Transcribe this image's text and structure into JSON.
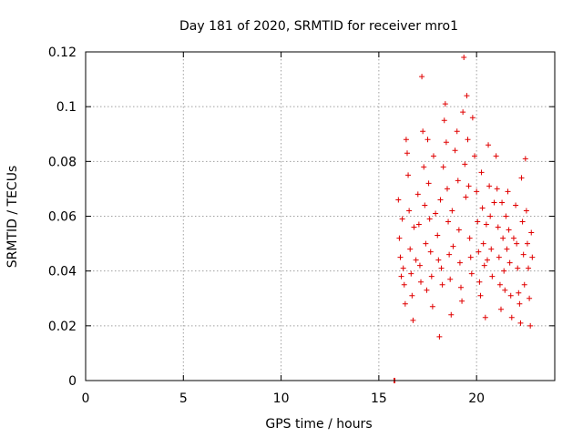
{
  "chart_data": {
    "type": "scatter",
    "title": "Day 181 of 2020, SRMTID for receiver mro1",
    "xlabel": "GPS time / hours",
    "ylabel": "SRMTID / TECUs",
    "xlim": [
      0,
      24
    ],
    "ylim": [
      0,
      0.12
    ],
    "x_ticks": [
      0,
      5,
      10,
      15,
      20
    ],
    "x_tick_labels": [
      "0",
      "5",
      "10",
      "15",
      "20"
    ],
    "y_ticks": [
      0,
      0.02,
      0.04,
      0.06,
      0.08,
      0.1,
      0.12
    ],
    "y_tick_labels": [
      "0",
      "0.02",
      "0.04",
      "0.06",
      "0.08",
      "0.1",
      "0.12"
    ],
    "grid": true,
    "marker": "+",
    "color": "#e00000",
    "series": [
      {
        "name": "SRMTID",
        "points": [
          [
            15.78,
            0.0
          ],
          [
            15.82,
            0.0
          ],
          [
            16.0,
            0.066
          ],
          [
            16.05,
            0.052
          ],
          [
            16.1,
            0.045
          ],
          [
            16.15,
            0.038
          ],
          [
            16.2,
            0.059
          ],
          [
            16.25,
            0.041
          ],
          [
            16.3,
            0.035
          ],
          [
            16.35,
            0.028
          ],
          [
            16.4,
            0.088
          ],
          [
            16.45,
            0.083
          ],
          [
            16.5,
            0.075
          ],
          [
            16.55,
            0.062
          ],
          [
            16.6,
            0.048
          ],
          [
            16.65,
            0.039
          ],
          [
            16.7,
            0.031
          ],
          [
            16.75,
            0.022
          ],
          [
            16.8,
            0.056
          ],
          [
            16.9,
            0.044
          ],
          [
            17.0,
            0.068
          ],
          [
            17.05,
            0.057
          ],
          [
            17.1,
            0.042
          ],
          [
            17.15,
            0.036
          ],
          [
            17.2,
            0.111
          ],
          [
            17.25,
            0.091
          ],
          [
            17.3,
            0.078
          ],
          [
            17.35,
            0.064
          ],
          [
            17.4,
            0.05
          ],
          [
            17.45,
            0.033
          ],
          [
            17.5,
            0.088
          ],
          [
            17.55,
            0.072
          ],
          [
            17.6,
            0.059
          ],
          [
            17.65,
            0.047
          ],
          [
            17.7,
            0.038
          ],
          [
            17.75,
            0.027
          ],
          [
            17.8,
            0.082
          ],
          [
            17.9,
            0.061
          ],
          [
            18.0,
            0.053
          ],
          [
            18.05,
            0.044
          ],
          [
            18.1,
            0.016
          ],
          [
            18.15,
            0.066
          ],
          [
            18.2,
            0.041
          ],
          [
            18.25,
            0.035
          ],
          [
            18.3,
            0.078
          ],
          [
            18.35,
            0.095
          ],
          [
            18.4,
            0.101
          ],
          [
            18.45,
            0.087
          ],
          [
            18.5,
            0.07
          ],
          [
            18.55,
            0.058
          ],
          [
            18.6,
            0.046
          ],
          [
            18.65,
            0.037
          ],
          [
            18.7,
            0.024
          ],
          [
            18.75,
            0.062
          ],
          [
            18.8,
            0.049
          ],
          [
            18.9,
            0.084
          ],
          [
            19.0,
            0.091
          ],
          [
            19.05,
            0.073
          ],
          [
            19.1,
            0.055
          ],
          [
            19.15,
            0.043
          ],
          [
            19.2,
            0.034
          ],
          [
            19.25,
            0.029
          ],
          [
            19.3,
            0.098
          ],
          [
            19.35,
            0.118
          ],
          [
            19.4,
            0.079
          ],
          [
            19.45,
            0.067
          ],
          [
            19.5,
            0.104
          ],
          [
            19.55,
            0.088
          ],
          [
            19.6,
            0.071
          ],
          [
            19.65,
            0.052
          ],
          [
            19.7,
            0.045
          ],
          [
            19.75,
            0.039
          ],
          [
            19.8,
            0.096
          ],
          [
            19.9,
            0.082
          ],
          [
            20.0,
            0.069
          ],
          [
            20.05,
            0.058
          ],
          [
            20.1,
            0.047
          ],
          [
            20.15,
            0.036
          ],
          [
            20.2,
            0.031
          ],
          [
            20.25,
            0.076
          ],
          [
            20.3,
            0.063
          ],
          [
            20.35,
            0.05
          ],
          [
            20.4,
            0.042
          ],
          [
            20.45,
            0.023
          ],
          [
            20.5,
            0.057
          ],
          [
            20.55,
            0.044
          ],
          [
            20.6,
            0.086
          ],
          [
            20.65,
            0.071
          ],
          [
            20.7,
            0.06
          ],
          [
            20.75,
            0.048
          ],
          [
            20.8,
            0.038
          ],
          [
            20.9,
            0.065
          ],
          [
            21.0,
            0.082
          ],
          [
            21.05,
            0.07
          ],
          [
            21.1,
            0.056
          ],
          [
            21.15,
            0.045
          ],
          [
            21.2,
            0.035
          ],
          [
            21.25,
            0.026
          ],
          [
            21.3,
            0.065
          ],
          [
            21.35,
            0.052
          ],
          [
            21.4,
            0.04
          ],
          [
            21.45,
            0.033
          ],
          [
            21.5,
            0.06
          ],
          [
            21.55,
            0.048
          ],
          [
            21.6,
            0.069
          ],
          [
            21.65,
            0.055
          ],
          [
            21.7,
            0.043
          ],
          [
            21.75,
            0.031
          ],
          [
            21.8,
            0.023
          ],
          [
            21.9,
            0.052
          ],
          [
            22.0,
            0.064
          ],
          [
            22.05,
            0.05
          ],
          [
            22.1,
            0.041
          ],
          [
            22.15,
            0.032
          ],
          [
            22.2,
            0.028
          ],
          [
            22.25,
            0.021
          ],
          [
            22.3,
            0.074
          ],
          [
            22.35,
            0.058
          ],
          [
            22.4,
            0.046
          ],
          [
            22.45,
            0.035
          ],
          [
            22.5,
            0.081
          ],
          [
            22.55,
            0.062
          ],
          [
            22.6,
            0.05
          ],
          [
            22.65,
            0.041
          ],
          [
            22.7,
            0.03
          ],
          [
            22.75,
            0.02
          ],
          [
            22.8,
            0.054
          ],
          [
            22.85,
            0.045
          ]
        ]
      }
    ]
  }
}
